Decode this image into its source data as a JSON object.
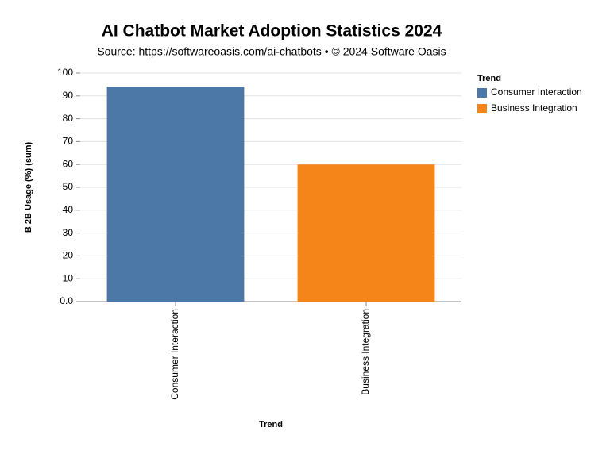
{
  "chart_data": {
    "type": "bar",
    "title": "AI Chatbot Market Adoption Statistics 2024",
    "subtitle": "Source: https://softwareoasis.com/ai-chatbots • © 2024 Software Oasis",
    "x_label": "Trend",
    "y_label": "B 2B Usage (%) (sum)",
    "categories": [
      "Consumer Interaction",
      "Business Integration"
    ],
    "values": [
      94,
      60
    ],
    "colors": [
      "#4c78a8",
      "#f58518"
    ],
    "legend_title": "Trend",
    "legend_position": "right",
    "ylim": [
      0,
      100
    ],
    "yticks": [
      {
        "value": 0,
        "label": "0.0"
      },
      10,
      20,
      30,
      40,
      50,
      60,
      70,
      80,
      90,
      100
    ],
    "grid": true
  }
}
